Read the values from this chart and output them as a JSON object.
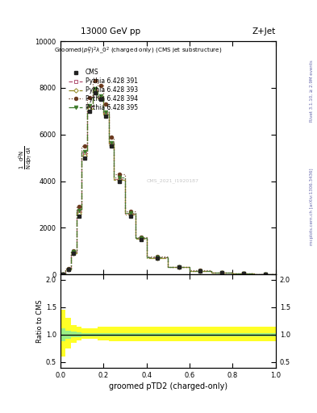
{
  "title_top": "13000 GeV pp",
  "title_top_right": "Z+Jet",
  "plot_title": "Groomed$(p_T^D)^2\\lambda\\_0^2$ (charged only) (CMS jet substructure)",
  "xlabel": "groomed pTD2 (charged-only)",
  "ylabel_ratio": "Ratio to CMS",
  "right_label1": "Rivet 3.1.10, ≥ 2.9M events",
  "right_label2": "mcplots.cern.ch [arXiv:1306.3436]",
  "watermark": "CMS_2021_I1920187",
  "x_edges": [
    0.0,
    0.025,
    0.05,
    0.075,
    0.1,
    0.125,
    0.15,
    0.175,
    0.2,
    0.225,
    0.25,
    0.3,
    0.35,
    0.4,
    0.5,
    0.6,
    0.7,
    0.8,
    0.9,
    1.0
  ],
  "cms_values": [
    10,
    200,
    900,
    2500,
    5000,
    7000,
    7800,
    7500,
    6800,
    5500,
    4000,
    2500,
    1500,
    700,
    300,
    150,
    70,
    30,
    10
  ],
  "py391_values": [
    12,
    220,
    950,
    2700,
    5200,
    7200,
    7900,
    7600,
    6900,
    5600,
    4100,
    2600,
    1550,
    720,
    310,
    155,
    72,
    32,
    11
  ],
  "py393_values": [
    11,
    210,
    920,
    2600,
    5100,
    7100,
    7850,
    7550,
    6850,
    5550,
    4050,
    2550,
    1520,
    710,
    305,
    152,
    71,
    31,
    10
  ],
  "py394_values": [
    14,
    250,
    1000,
    2900,
    5500,
    7600,
    8300,
    8100,
    7300,
    5900,
    4300,
    2700,
    1600,
    750,
    320,
    160,
    74,
    33,
    11
  ],
  "py395_values": [
    12,
    225,
    960,
    2750,
    5250,
    7250,
    7950,
    7650,
    6950,
    5650,
    4150,
    2620,
    1560,
    725,
    312,
    156,
    72,
    32,
    11
  ],
  "cms_color": "#222222",
  "py391_color": "#b05070",
  "py393_color": "#908820",
  "py394_color": "#6b3a1f",
  "py395_color": "#3d7a2a",
  "ratio_green_lo": [
    0.88,
    0.93,
    0.95,
    0.96,
    0.97,
    0.97,
    0.97,
    0.97,
    0.97,
    0.97,
    0.97,
    0.97,
    0.97,
    0.97,
    0.97,
    0.97,
    0.97,
    0.97,
    0.97
  ],
  "ratio_green_hi": [
    1.12,
    1.07,
    1.05,
    1.04,
    1.03,
    1.03,
    1.03,
    1.03,
    1.03,
    1.03,
    1.03,
    1.03,
    1.03,
    1.03,
    1.03,
    1.03,
    1.03,
    1.03,
    1.03
  ],
  "ratio_yellow_lo": [
    0.6,
    0.75,
    0.85,
    0.9,
    0.92,
    0.92,
    0.92,
    0.9,
    0.9,
    0.88,
    0.88,
    0.88,
    0.88,
    0.88,
    0.88,
    0.88,
    0.88,
    0.88,
    0.88
  ],
  "ratio_yellow_hi": [
    1.45,
    1.3,
    1.18,
    1.14,
    1.12,
    1.12,
    1.12,
    1.14,
    1.14,
    1.15,
    1.15,
    1.15,
    1.15,
    1.15,
    1.15,
    1.15,
    1.15,
    1.15,
    1.15
  ],
  "ylim_main": [
    0,
    10000
  ],
  "ylim_ratio": [
    0.4,
    2.1
  ],
  "yticks_main": [
    0,
    2000,
    4000,
    6000,
    8000,
    10000
  ],
  "yticks_ratio": [
    0.5,
    1.0,
    1.5,
    2.0
  ]
}
